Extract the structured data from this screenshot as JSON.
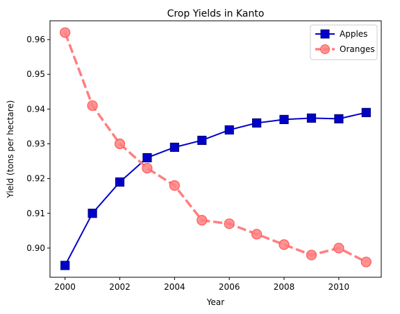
{
  "chart_data": {
    "type": "line",
    "title": "Crop Yields in Kanto",
    "xlabel": "Year",
    "ylabel": "Yield (tons per hectare)",
    "x": [
      2000,
      2001,
      2002,
      2003,
      2004,
      2005,
      2006,
      2007,
      2008,
      2009,
      2010,
      2011
    ],
    "xticks": [
      2000,
      2002,
      2004,
      2006,
      2008,
      2010
    ],
    "yticks": [
      0.9,
      0.91,
      0.92,
      0.93,
      0.94,
      0.95,
      0.96
    ],
    "xlim": [
      1999.45,
      2011.55
    ],
    "ylim": [
      0.8916,
      0.9654
    ],
    "grid": false,
    "legend_position": "top-right",
    "series": [
      {
        "name": "Apples",
        "values": [
          0.895,
          0.91,
          0.919,
          0.926,
          0.929,
          0.931,
          0.934,
          0.936,
          0.937,
          0.9374,
          0.9372,
          0.939
        ],
        "color": "#0000cc",
        "line_style": "solid",
        "marker": "square"
      },
      {
        "name": "Oranges",
        "values": [
          0.962,
          0.941,
          0.93,
          0.923,
          0.918,
          0.908,
          0.907,
          0.904,
          0.901,
          0.898,
          0.9,
          0.896
        ],
        "color": "#ff7f7f",
        "line_style": "dashed",
        "marker": "circle"
      }
    ]
  }
}
